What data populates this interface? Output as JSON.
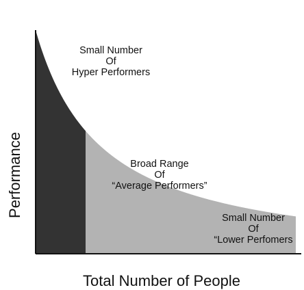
{
  "axes": {
    "y_label": "Performance",
    "x_label": "Total Number of People"
  },
  "regions": {
    "hyper": {
      "lines": [
        "Small Number",
        "Of",
        "Hyper Performers"
      ],
      "color": "#333333"
    },
    "average": {
      "lines": [
        "Broad Range",
        "Of",
        "“Average Performers”"
      ],
      "color": "#b3b3b3"
    },
    "lower": {
      "lines": [
        "Small Number",
        "Of",
        "“Lower Perfomers"
      ],
      "color": "#b3b3b3"
    }
  },
  "axis_color": "#111111",
  "curve_shape": "decaying (power-law) curve"
}
